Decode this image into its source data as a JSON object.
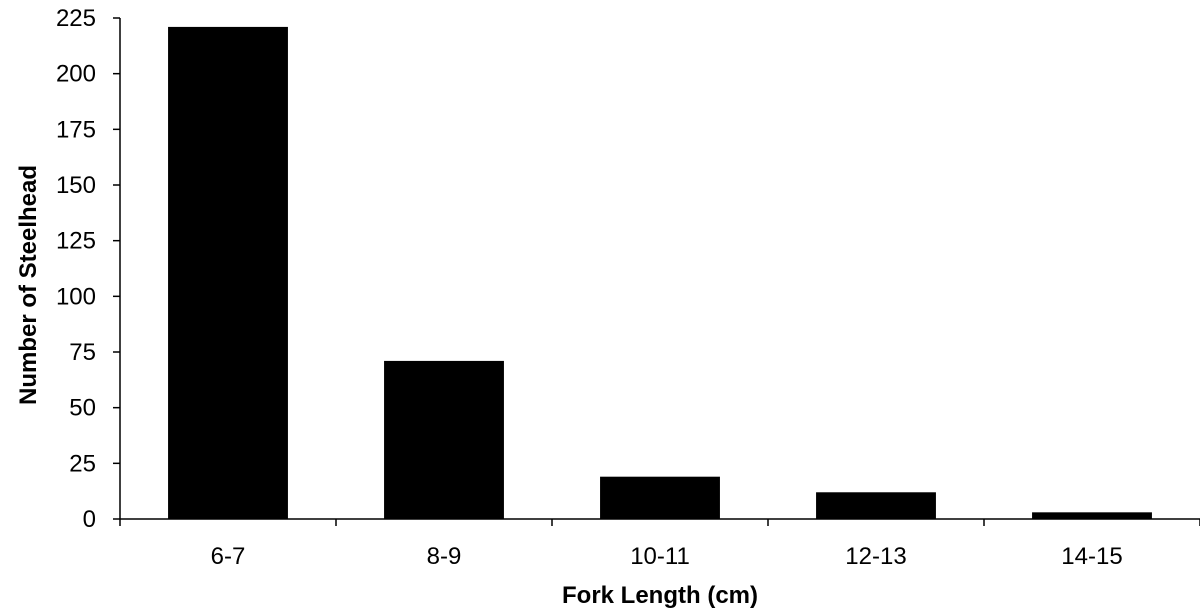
{
  "chart_data": {
    "type": "bar",
    "categories": [
      "6-7",
      "8-9",
      "10-11",
      "12-13",
      "14-15"
    ],
    "values": [
      221,
      71,
      19,
      12,
      3
    ],
    "title": "",
    "xlabel": "Fork Length (cm)",
    "ylabel": "Number of Steelhead",
    "ylim": [
      0,
      225
    ],
    "yticks": [
      0,
      25,
      50,
      75,
      100,
      125,
      150,
      175,
      200,
      225
    ],
    "grid": false,
    "legend": "none",
    "bar_color": "#000000"
  }
}
